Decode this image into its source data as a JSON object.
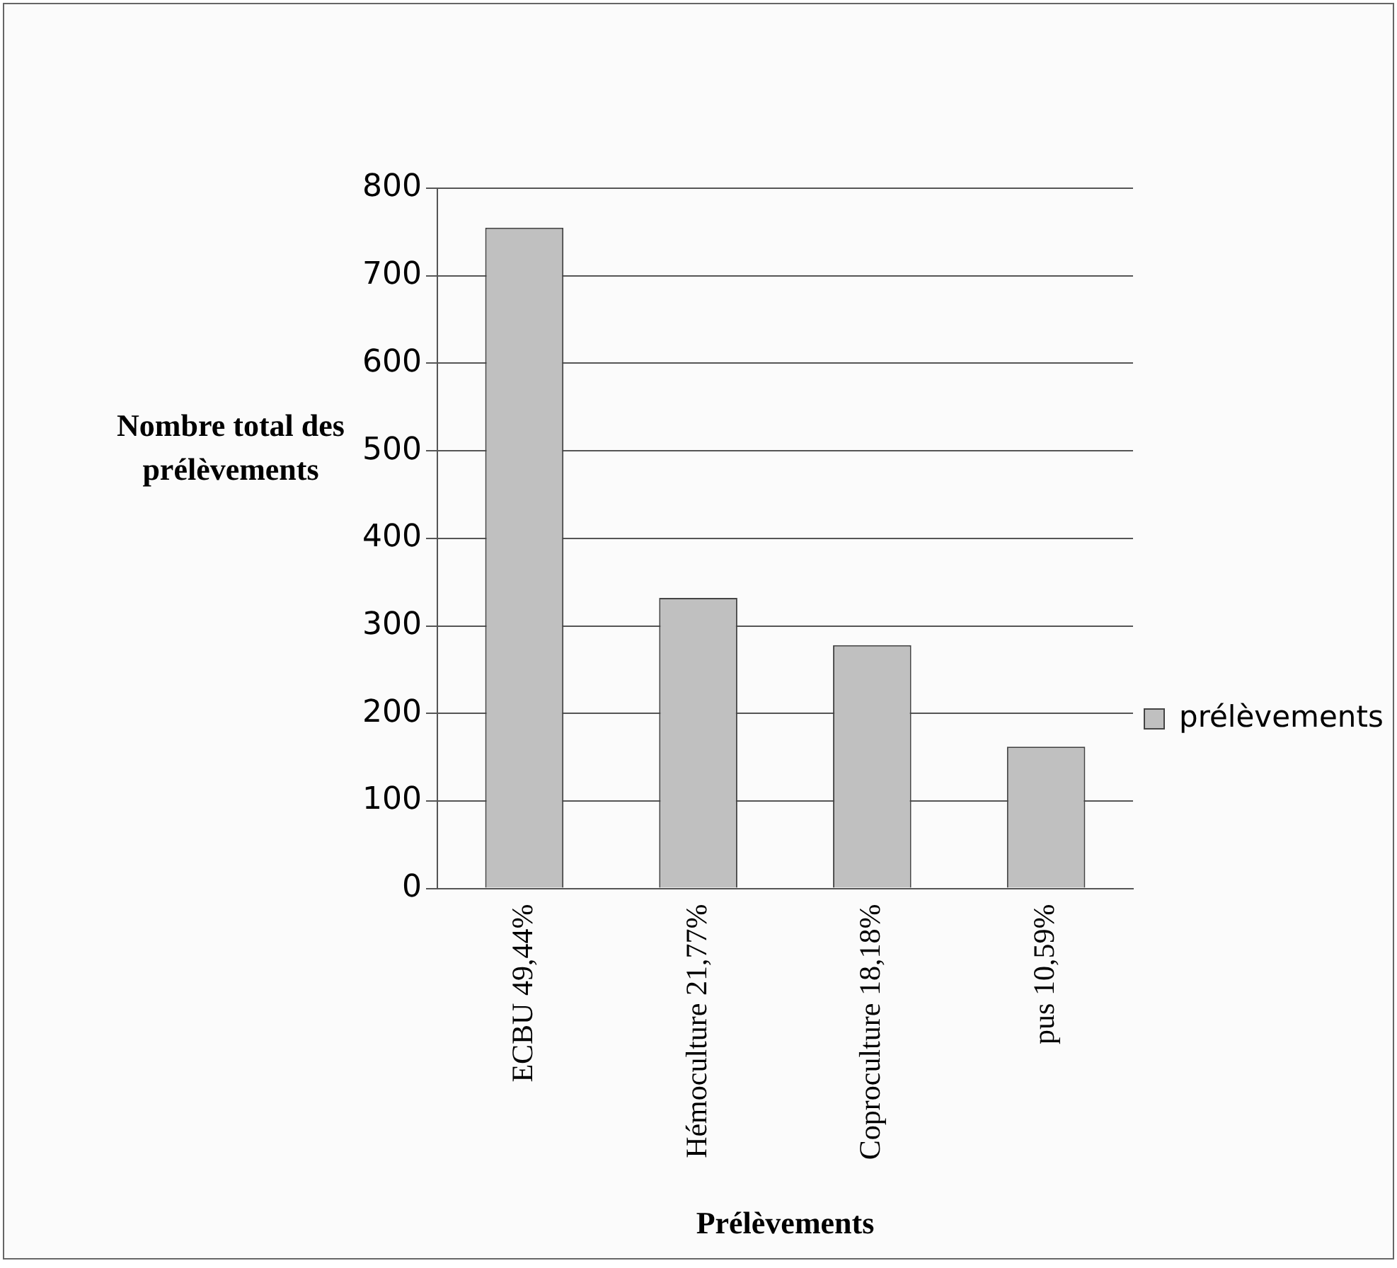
{
  "chart_data": {
    "type": "bar",
    "categories": [
      "ECBU 49,44%",
      "Hémoculture 21,77%",
      "Coproculture 18,18%",
      "pus 10,59%"
    ],
    "series": [
      {
        "name": "prélèvements",
        "color": "#c0c0c0",
        "values": [
          755,
          332,
          278,
          162
        ]
      }
    ],
    "xlabel": "Prélèvements",
    "ylabel": "Nombre total des prélèvements",
    "ylim": [
      0,
      800
    ],
    "yticks": [
      0,
      100,
      200,
      300,
      400,
      500,
      600,
      700,
      800
    ],
    "grid": "y",
    "legend": "right"
  }
}
